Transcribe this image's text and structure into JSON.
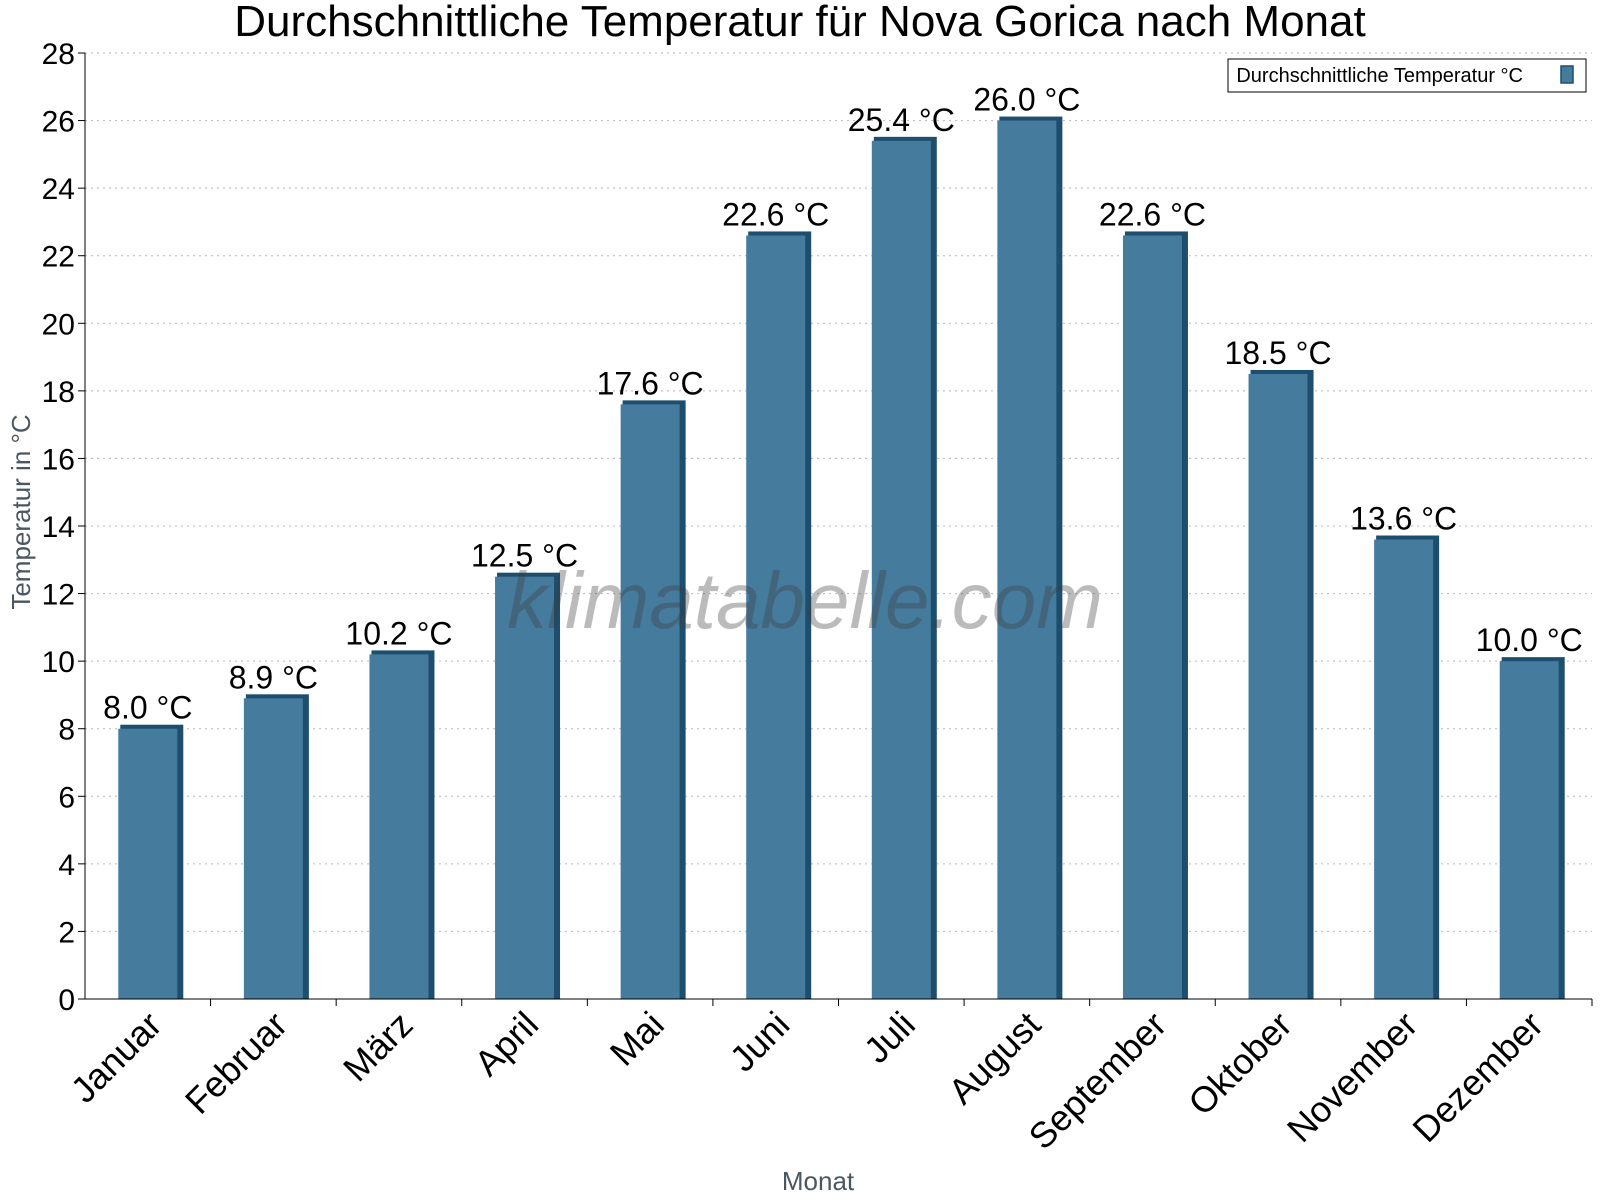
{
  "chart_data": {
    "type": "bar",
    "title": "Durchschnittliche Temperatur für Nova Gorica nach Monat",
    "xlabel": "Monat",
    "ylabel": "Temperatur in °C",
    "categories": [
      "Januar",
      "Februar",
      "März",
      "April",
      "Mai",
      "Juni",
      "Juli",
      "August",
      "September",
      "Oktober",
      "November",
      "Dezember"
    ],
    "series": [
      {
        "name": "Durchschnittliche Temperatur °C",
        "values": [
          8.0,
          8.9,
          10.2,
          12.5,
          17.6,
          22.6,
          25.4,
          26.0,
          22.6,
          18.5,
          13.6,
          10.0
        ],
        "data_labels": [
          "8.0 °C",
          "8.9 °C",
          "10.2 °C",
          "12.5 °C",
          "17.6 °C",
          "22.6 °C",
          "25.4 °C",
          "26.0 °C",
          "22.6 °C",
          "18.5 °C",
          "13.6 °C",
          "10.0 °C"
        ],
        "color": "#457b9d",
        "edge_color": "#1d4e6e"
      }
    ],
    "ylim": [
      0,
      28
    ],
    "yticks": [
      0,
      2,
      4,
      6,
      8,
      10,
      12,
      14,
      16,
      18,
      20,
      22,
      24,
      26,
      28
    ],
    "grid": true,
    "legend_position": "top-right"
  },
  "watermark": "klimatabelle.com"
}
